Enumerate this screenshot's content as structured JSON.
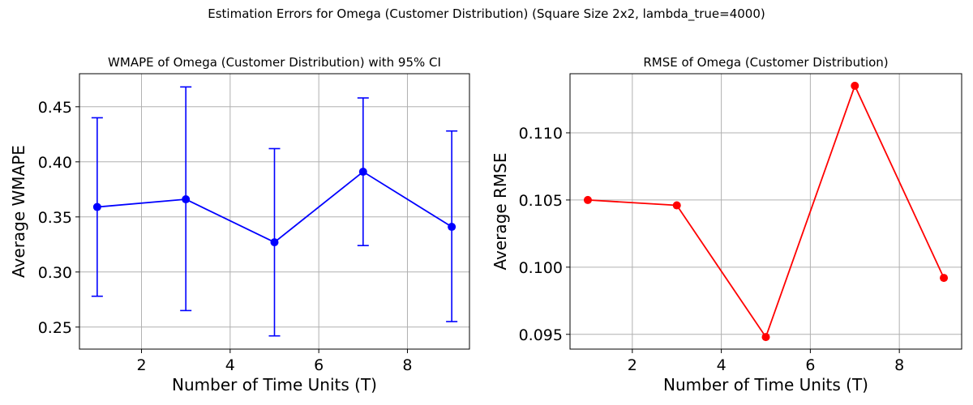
{
  "suptitle": "Estimation Errors for Omega (Customer Distribution) (Square Size 2x2, lambda_true=4000)",
  "chart_data": [
    {
      "type": "line",
      "title": "WMAPE of Omega (Customer Distribution) with 95% CI",
      "xlabel": "Number of Time Units (T)",
      "ylabel": "Average WMAPE",
      "xlim": [
        0.6,
        9.4
      ],
      "ylim": [
        0.23,
        0.48
      ],
      "xticks": [
        2,
        4,
        6,
        8
      ],
      "xtick_labels": [
        "2",
        "4",
        "6",
        "8"
      ],
      "yticks": [
        0.25,
        0.3,
        0.35,
        0.4,
        0.45
      ],
      "ytick_labels": [
        "0.25",
        "0.30",
        "0.35",
        "0.40",
        "0.45"
      ],
      "grid": true,
      "color": "#0000ff",
      "marker": "circle",
      "error_bars": true,
      "x": [
        1,
        3,
        5,
        7,
        9
      ],
      "series": [
        {
          "values": [
            0.359,
            0.366,
            0.327,
            0.391,
            0.341
          ],
          "ci_lower": [
            0.278,
            0.265,
            0.242,
            0.324,
            0.255
          ],
          "ci_upper": [
            0.44,
            0.468,
            0.412,
            0.458,
            0.428
          ]
        }
      ]
    },
    {
      "type": "line",
      "title": "RMSE of Omega (Customer Distribution)",
      "xlabel": "Number of Time Units (T)",
      "ylabel": "Average RMSE",
      "xlim": [
        0.6,
        9.4
      ],
      "ylim": [
        0.0939,
        0.1144
      ],
      "xticks": [
        2,
        4,
        6,
        8
      ],
      "xtick_labels": [
        "2",
        "4",
        "6",
        "8"
      ],
      "yticks": [
        0.095,
        0.1,
        0.105,
        0.11
      ],
      "ytick_labels": [
        "0.095",
        "0.100",
        "0.105",
        "0.110"
      ],
      "grid": true,
      "color": "#ff0000",
      "marker": "circle",
      "error_bars": false,
      "x": [
        1,
        3,
        5,
        7,
        9
      ],
      "series": [
        {
          "values": [
            0.105,
            0.1046,
            0.0948,
            0.1135,
            0.0992
          ]
        }
      ]
    }
  ]
}
